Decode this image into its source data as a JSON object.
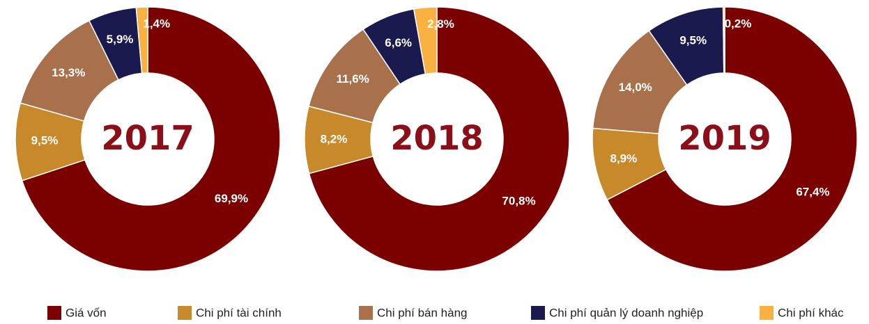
{
  "chart_data": [
    {
      "type": "pie",
      "title": "2017",
      "values": [
        69.9,
        9.5,
        13.3,
        5.9,
        1.4
      ],
      "value_labels": [
        "69,9%",
        "9,5%",
        "13,3%",
        "5,9%",
        "1,4%"
      ]
    },
    {
      "type": "pie",
      "title": "2018",
      "values": [
        70.8,
        8.2,
        11.6,
        6.6,
        2.8
      ],
      "value_labels": [
        "70,8%",
        "8,2%",
        "11,6%",
        "6,6%",
        "2,8%"
      ]
    },
    {
      "type": "pie",
      "title": "2019",
      "values": [
        67.4,
        8.9,
        14.0,
        9.5,
        0.2
      ],
      "value_labels": [
        "67,4%",
        "8,9%",
        "14,0%",
        "9,5%",
        "0,2%"
      ]
    }
  ],
  "legend": {
    "labels": [
      "Giá vốn",
      "Chi phí tài chính",
      "Chi phí bán hàng",
      "Chi phí quản lý doanh nghiệp",
      "Chi phí khác"
    ],
    "colors": [
      "#7b0000",
      "#c8892a",
      "#a8714b",
      "#1a1a4e",
      "#f9b141"
    ]
  }
}
